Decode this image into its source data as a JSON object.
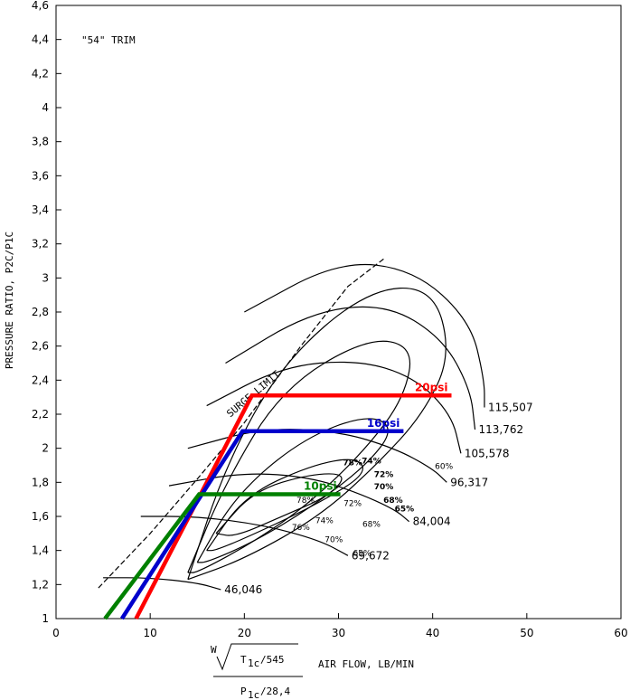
{
  "chart_data": {
    "type": "line",
    "annotation_trim": "\"54\" TRIM",
    "ylabel": "PRESSURE RATIO, P2C/P1C",
    "xlabel": "AIR FLOW, LB/MIN",
    "xlabel_formula": {
      "w": "W",
      "t": "T",
      "t_sub": "1c",
      "t_den": "/545",
      "p": "P",
      "p_sub": "1c",
      "p_den": "/28,4"
    },
    "xlim": [
      0,
      60
    ],
    "ylim": [
      1,
      4.6
    ],
    "x_ticks": [
      "0",
      "10",
      "20",
      "30",
      "40",
      "50",
      "60"
    ],
    "y_ticks": [
      "1",
      "1,2",
      "1,4",
      "1,6",
      "1,8",
      "2",
      "2,2",
      "2,4",
      "2,6",
      "2,8",
      "3",
      "3,2",
      "3,4",
      "3,6",
      "3,8",
      "4",
      "4,2",
      "4,4",
      "4,6"
    ],
    "surge_label": "SURGE LIMIT",
    "speed_lines": [
      {
        "label": "115,507",
        "x": 45.5,
        "y": 2.24
      },
      {
        "label": "113,762",
        "x": 44.5,
        "y": 2.11
      },
      {
        "label": "105,578",
        "x": 43.0,
        "y": 1.97
      },
      {
        "label": "96,317",
        "x": 41.5,
        "y": 1.8
      },
      {
        "label": "84,004",
        "x": 37.5,
        "y": 1.57
      },
      {
        "label": "69,672",
        "x": 31.0,
        "y": 1.37
      },
      {
        "label": "46,046",
        "x": 17.5,
        "y": 1.17
      }
    ],
    "efficiency_labels": [
      {
        "label": "78%",
        "x": 31.5,
        "y": 1.9,
        "bold": true
      },
      {
        "label": "74%",
        "x": 33.5,
        "y": 1.91,
        "bold": true
      },
      {
        "label": "72%",
        "x": 34.8,
        "y": 1.83,
        "bold": true
      },
      {
        "label": "70%",
        "x": 34.8,
        "y": 1.76,
        "bold": true
      },
      {
        "label": "68%",
        "x": 35.8,
        "y": 1.68,
        "bold": true
      },
      {
        "label": "65%",
        "x": 37.0,
        "y": 1.63,
        "bold": true
      },
      {
        "label": "60%",
        "x": 41.2,
        "y": 1.88,
        "bold": false
      },
      {
        "label": "78%",
        "x": 26.5,
        "y": 1.68,
        "bold": false
      },
      {
        "label": "76%",
        "x": 26.0,
        "y": 1.52,
        "bold": false
      },
      {
        "label": "74%",
        "x": 28.5,
        "y": 1.56,
        "bold": false
      },
      {
        "label": "72%",
        "x": 31.5,
        "y": 1.66,
        "bold": false
      },
      {
        "label": "70%",
        "x": 29.5,
        "y": 1.45,
        "bold": false
      },
      {
        "label": "68%",
        "x": 33.5,
        "y": 1.54,
        "bold": false
      },
      {
        "label": "65%",
        "x": 32.5,
        "y": 1.37,
        "bold": false
      }
    ],
    "series": [
      {
        "name": "20psi",
        "color": "#ff0000",
        "x": [
          8.5,
          20.8,
          42.0
        ],
        "y": [
          1.0,
          2.31,
          2.31
        ]
      },
      {
        "name": "16psi",
        "color": "#0000cc",
        "x": [
          7.0,
          19.8,
          36.9
        ],
        "y": [
          1.0,
          2.1,
          2.1
        ]
      },
      {
        "name": "10psi",
        "color": "#008000",
        "x": [
          5.2,
          15.2,
          30.2
        ],
        "y": [
          1.0,
          1.73,
          1.73
        ]
      }
    ],
    "grid": false,
    "legend": "inline labels"
  }
}
